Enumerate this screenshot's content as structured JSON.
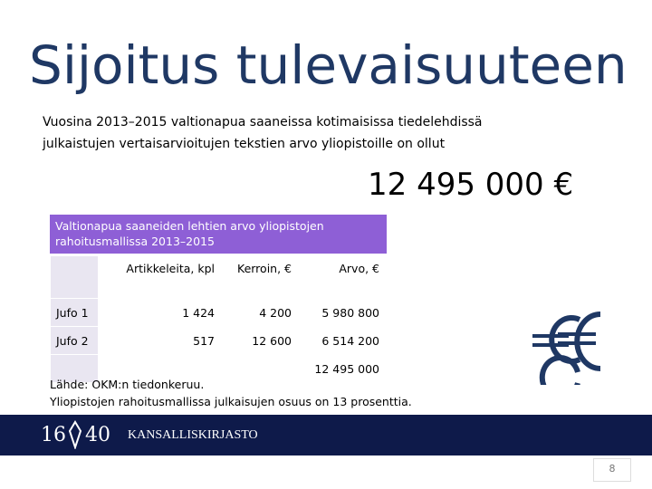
{
  "header": {
    "title": "Sijoitus tulevaisuuteen"
  },
  "intro": {
    "lines": [
      "Vuosina 2013–2015 valtionapua saaneissa kotimaisissa tiedelehdissä",
      "julkaistujen vertaisarvioitujen tekstien arvo yliopistoille on ollut"
    ],
    "amount": "12 495 000 €"
  },
  "table": {
    "caption": "Valtionapua saaneiden lehtien arvo yliopistojen rahoitusmallissa 2013–2015",
    "columns": [
      "Artikkeleita, kpl",
      "Kerroin, €",
      "Arvo, €"
    ],
    "rows": [
      {
        "label": "Jufo 1",
        "cells": [
          "1 424",
          "4 200",
          "5 980 800"
        ]
      },
      {
        "label": "Jufo 2",
        "cells": [
          "517",
          "12 600",
          "6 514 200"
        ]
      }
    ],
    "total": "12 495 000"
  },
  "source": {
    "lines": [
      "Lähde: OKM:n tiedonkeruu.",
      "Yliopistojen rahoitusmallissa julkaisujen osuus on 13 prosenttia."
    ]
  },
  "footer": {
    "logo_left": "16",
    "logo_right": "40",
    "org": "KANSALLISKIRJASTO",
    "page_number": "8"
  }
}
